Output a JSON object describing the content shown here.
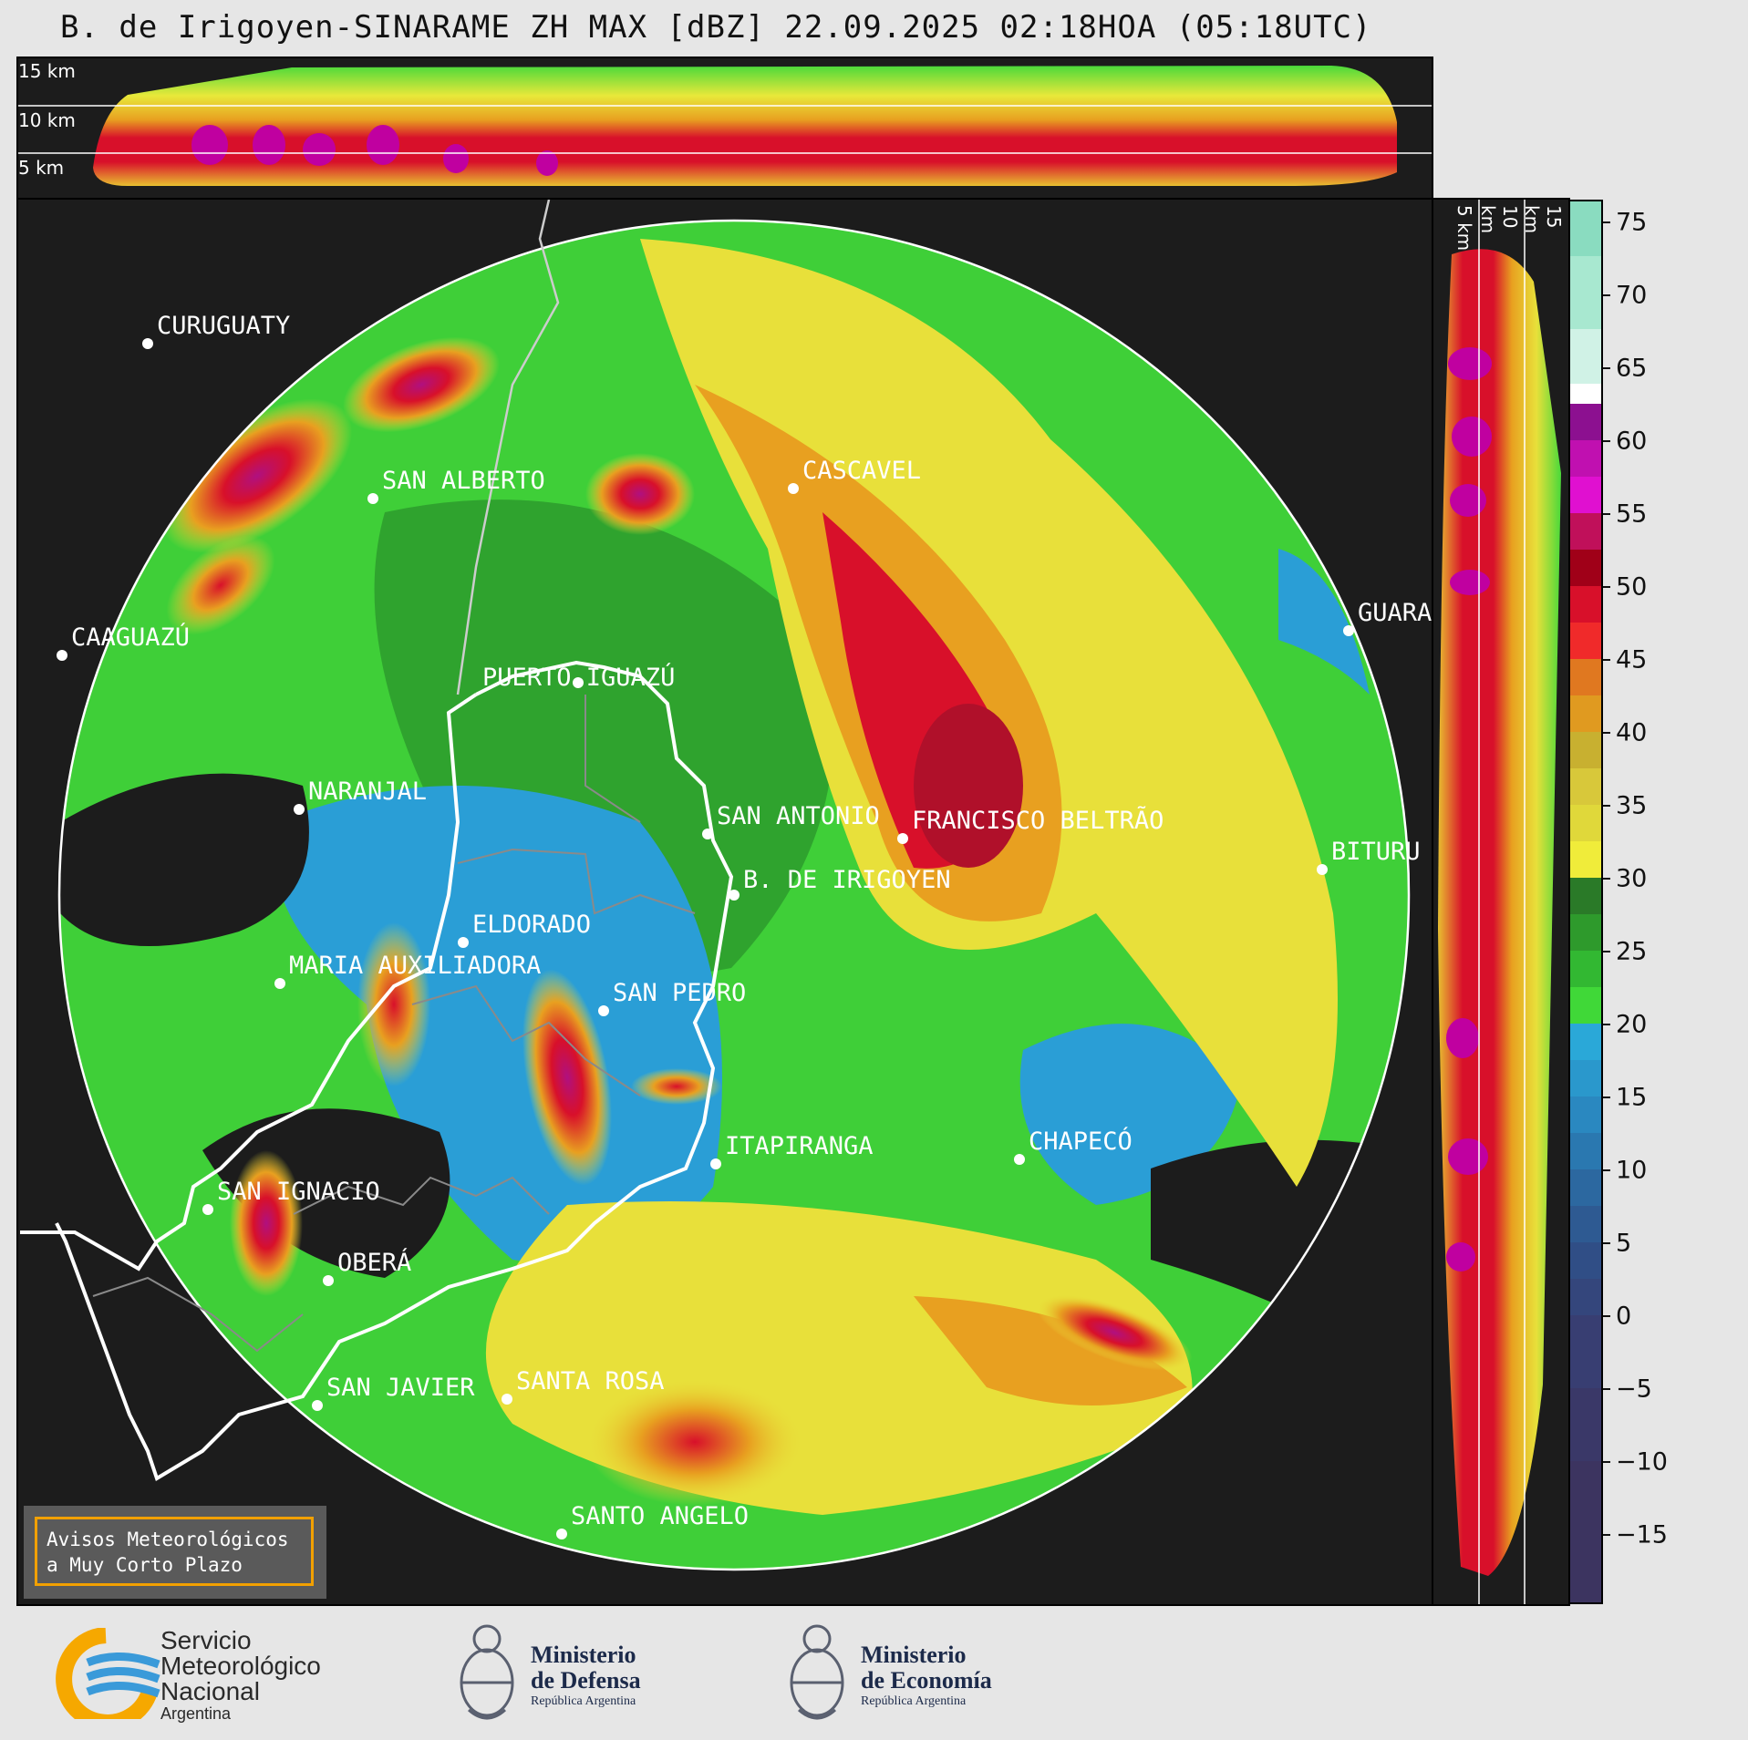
{
  "title": "B. de Irigoyen-SINARAME ZH MAX [dBZ] 22.09.2025 02:18HOA (05:18UTC)",
  "top_profile": {
    "altitude_labels": [
      "15 km",
      "10 km",
      "5 km"
    ]
  },
  "side_profile": {
    "altitude_labels": [
      "5 km",
      "10 km",
      "15 km"
    ]
  },
  "colorbar": {
    "ticks": [
      "75",
      "70",
      "65",
      "60",
      "55",
      "50",
      "45",
      "40",
      "35",
      "30",
      "25",
      "20",
      "15",
      "10",
      "5",
      "0",
      "−5",
      "−10",
      "−15"
    ],
    "range": [
      -20,
      77
    ]
  },
  "cities": [
    {
      "name": "CURUGUATY",
      "id": "curuguaty"
    },
    {
      "name": "SAN ALBERTO",
      "id": "san-alberto"
    },
    {
      "name": "CASCAVEL",
      "id": "cascavel"
    },
    {
      "name": "CAAGUAZÚ",
      "id": "caaguazu"
    },
    {
      "name": "GUARA",
      "id": "guara"
    },
    {
      "name": "PUERTO IGUAZÚ",
      "id": "puerto-iguazu"
    },
    {
      "name": "NARANJAL",
      "id": "naranjal"
    },
    {
      "name": "SAN ANTONIO",
      "id": "san-antonio"
    },
    {
      "name": "FRANCISCO BELTRÃO",
      "id": "francisco-beltrao"
    },
    {
      "name": "BITURU",
      "id": "bituru"
    },
    {
      "name": "B. DE IRIGOYEN",
      "id": "b-de-irigoyen"
    },
    {
      "name": "ELDORADO",
      "id": "eldorado"
    },
    {
      "name": "MARIA AUXILIADORA",
      "id": "maria-auxiliadora"
    },
    {
      "name": "SAN PEDRO",
      "id": "san-pedro"
    },
    {
      "name": "ITAPIRANGA",
      "id": "itapiranga"
    },
    {
      "name": "CHAPECÓ",
      "id": "chapeco"
    },
    {
      "name": "SAN IGNACIO",
      "id": "san-ignacio"
    },
    {
      "name": "OBERÁ",
      "id": "obera"
    },
    {
      "name": "SAN JAVIER",
      "id": "san-javier"
    },
    {
      "name": "SANTA ROSA",
      "id": "santa-rosa"
    },
    {
      "name": "SANTO ANGELO",
      "id": "santo-angelo"
    }
  ],
  "warning_box": {
    "line1": "Avisos Meteorológicos",
    "line2": "a Muy Corto Plazo"
  },
  "logos": {
    "smn": {
      "line1": "Servicio",
      "line2": "Meteorológico",
      "line3": "Nacional",
      "line4": "Argentina"
    },
    "defensa": {
      "line1": "Ministerio",
      "line2": "de Defensa",
      "line3": "República Argentina"
    },
    "economia": {
      "line1": "Ministerio",
      "line2": "de Economía",
      "line3": "República Argentina"
    }
  },
  "colors": {
    "radar_ring": "#ffffff",
    "warning_border": "#f2a000",
    "smn_orange": "#f6a800",
    "smn_blue": "#3a9ad9"
  }
}
